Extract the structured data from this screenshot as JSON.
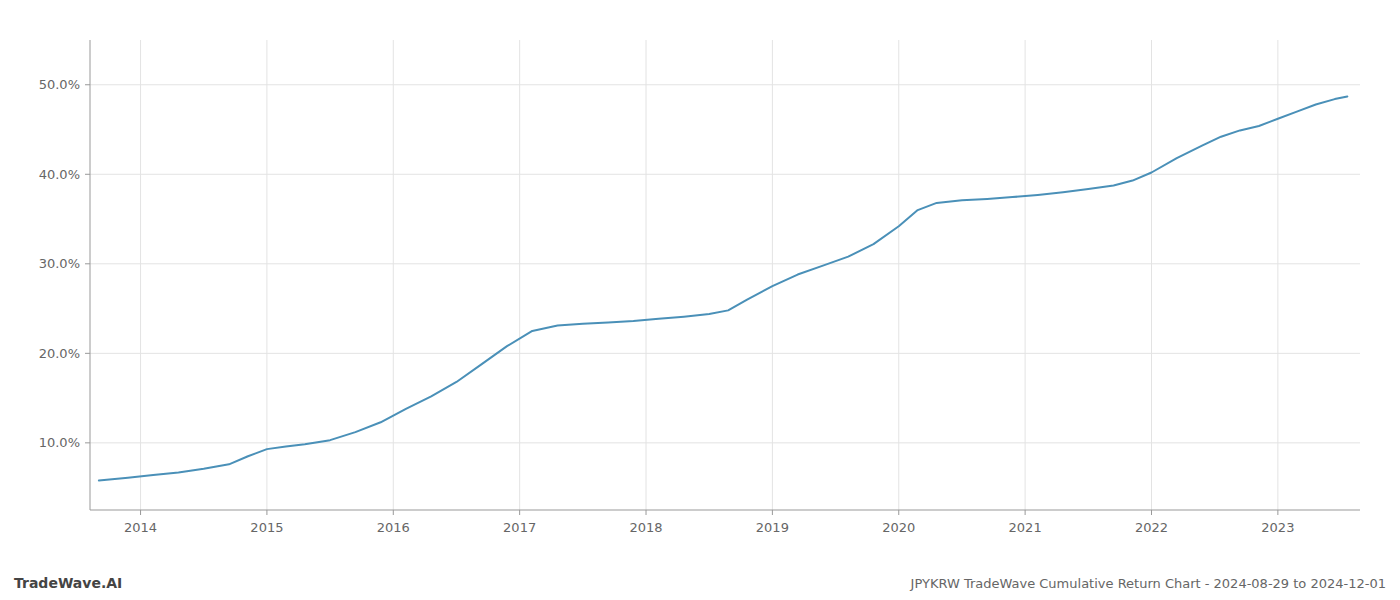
{
  "chart_data": {
    "type": "line",
    "title": "JPYKRW TradeWave Cumulative Return Chart - 2024-08-29 to 2024-12-01",
    "annotations": [
      "TradeWave.AI"
    ],
    "color": "#4a90b8",
    "grid": true,
    "xlim": [
      2013.6,
      2023.65
    ],
    "ylim": [
      2.5,
      55.0
    ],
    "xticks": [
      2014,
      2015,
      2016,
      2017,
      2018,
      2019,
      2020,
      2021,
      2022,
      2023
    ],
    "yticks": [
      {
        "value": 10.0,
        "label": "10.0%"
      },
      {
        "value": 20.0,
        "label": "20.0%"
      },
      {
        "value": 30.0,
        "label": "30.0%"
      },
      {
        "value": 40.0,
        "label": "40.0%"
      },
      {
        "value": 50.0,
        "label": "50.0%"
      }
    ],
    "x": [
      2013.67,
      2013.9,
      2014.1,
      2014.3,
      2014.5,
      2014.7,
      2014.85,
      2015.0,
      2015.15,
      2015.3,
      2015.5,
      2015.7,
      2015.9,
      2016.1,
      2016.3,
      2016.5,
      2016.7,
      2016.9,
      2017.1,
      2017.3,
      2017.5,
      2017.7,
      2017.9,
      2018.1,
      2018.3,
      2018.5,
      2018.65,
      2018.8,
      2019.0,
      2019.2,
      2019.4,
      2019.6,
      2019.8,
      2020.0,
      2020.15,
      2020.3,
      2020.5,
      2020.7,
      2020.9,
      2021.1,
      2021.3,
      2021.5,
      2021.7,
      2021.85,
      2022.0,
      2022.2,
      2022.4,
      2022.55,
      2022.7,
      2022.85,
      2023.0,
      2023.15,
      2023.3,
      2023.45,
      2023.55
    ],
    "values": [
      5.8,
      6.1,
      6.4,
      6.7,
      7.1,
      7.6,
      8.5,
      9.3,
      9.6,
      9.85,
      10.3,
      11.2,
      12.3,
      13.8,
      15.2,
      16.8,
      18.8,
      20.8,
      22.5,
      23.1,
      23.3,
      23.45,
      23.6,
      23.85,
      24.1,
      24.4,
      24.8,
      26.0,
      27.5,
      28.8,
      29.8,
      30.8,
      32.2,
      34.2,
      36.0,
      36.8,
      37.1,
      37.25,
      37.45,
      37.7,
      38.0,
      38.35,
      38.75,
      39.3,
      40.2,
      41.8,
      43.2,
      44.2,
      44.9,
      45.4,
      46.2,
      47.0,
      47.8,
      48.4,
      48.7
    ]
  }
}
